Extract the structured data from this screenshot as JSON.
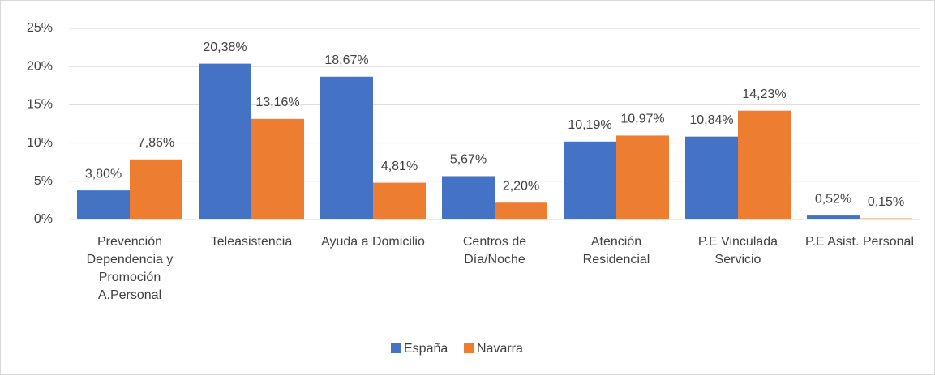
{
  "chart_data": {
    "type": "bar",
    "categories": [
      "Prevención Dependencia y Promoción A.Personal",
      "Teleasistencia",
      "Ayuda a Domicilio",
      "Centros de Día/Noche",
      "Atención Residencial",
      "P.E Vinculada Servicio",
      "P.E Asist. Personal"
    ],
    "series": [
      {
        "name": "España",
        "color": "#4472c4",
        "values": [
          3.8,
          20.38,
          18.67,
          5.67,
          10.19,
          10.84,
          0.52
        ],
        "value_labels": [
          "3,80%",
          "20,38%",
          "18,67%",
          "5,67%",
          "10,19%",
          "10,84%",
          "0,52%"
        ]
      },
      {
        "name": "Navarra",
        "color": "#ed7d31",
        "values": [
          7.86,
          13.16,
          4.81,
          2.2,
          10.97,
          14.23,
          0.15
        ],
        "value_labels": [
          "7,86%",
          "13,16%",
          "4,81%",
          "2,20%",
          "10,97%",
          "14,23%",
          "0,15%"
        ]
      }
    ],
    "ylim": [
      0,
      25
    ],
    "yticks": [
      {
        "value": 0,
        "label": "0%"
      },
      {
        "value": 5,
        "label": "5%"
      },
      {
        "value": 10,
        "label": "10%"
      },
      {
        "value": 15,
        "label": "15%"
      },
      {
        "value": 20,
        "label": "20%"
      },
      {
        "value": 25,
        "label": "25%"
      }
    ],
    "grid": true,
    "legend": "bottom"
  }
}
